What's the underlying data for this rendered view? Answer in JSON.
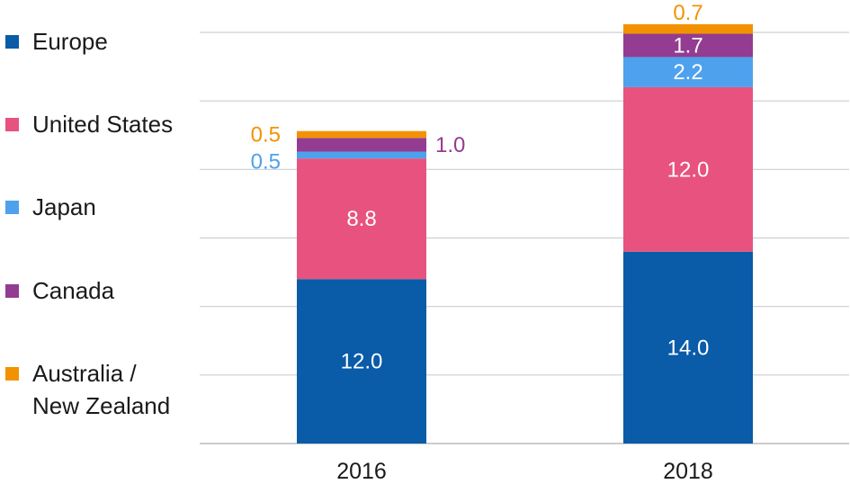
{
  "chart_data": {
    "type": "bar",
    "stacked": true,
    "categories": [
      "2016",
      "2018"
    ],
    "series": [
      {
        "name": "Europe",
        "color": "#0a5ba8",
        "values": [
          12.0,
          14.0
        ]
      },
      {
        "name": "United States",
        "color": "#e8527f",
        "values": [
          8.8,
          12.0
        ]
      },
      {
        "name": "Japan",
        "color": "#4ea1ed",
        "values": [
          0.5,
          2.2
        ]
      },
      {
        "name": "Canada",
        "color": "#933c91",
        "values": [
          1.0,
          1.7
        ]
      },
      {
        "name": "Australia /\nNew Zealand",
        "color": "#f39200",
        "values": [
          0.5,
          0.7
        ]
      }
    ],
    "data_labels": [
      [
        "12.0",
        "14.0"
      ],
      [
        "8.8",
        "12.0"
      ],
      [
        "0.5",
        "2.2"
      ],
      [
        "1.0",
        "1.7"
      ],
      [
        "0.5",
        "0.7"
      ]
    ],
    "legend": "left",
    "grid": true,
    "ylim": [
      0,
      30
    ]
  }
}
